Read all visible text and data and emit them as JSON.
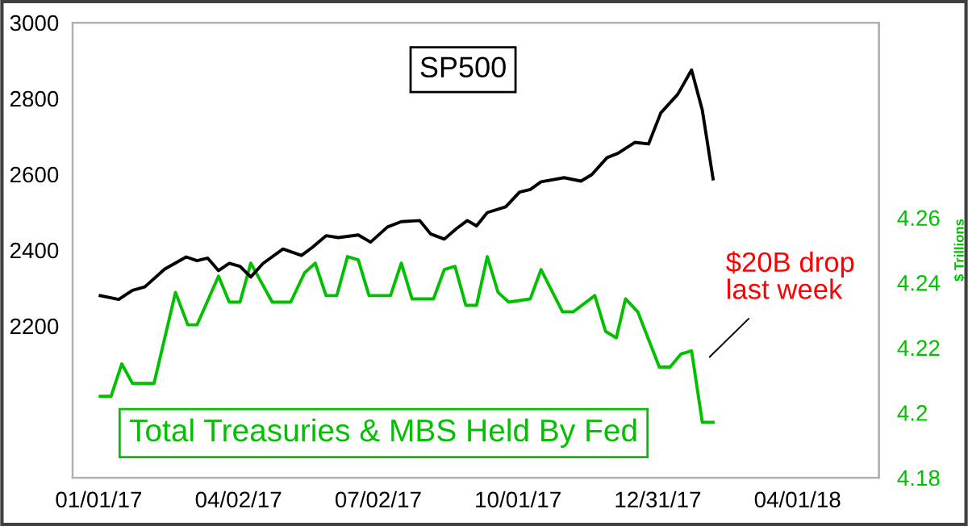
{
  "chart_data": {
    "type": "line",
    "series": [
      {
        "name": "SP500",
        "color": "#000000",
        "x": [
          "2017-01-02",
          "2017-01-14",
          "2017-01-23",
          "2017-01-31",
          "2017-02-13",
          "2017-02-27",
          "2017-03-06",
          "2017-03-13",
          "2017-03-20",
          "2017-03-27",
          "2017-04-03",
          "2017-04-10",
          "2017-04-18",
          "2017-05-01",
          "2017-05-13",
          "2017-05-20",
          "2017-05-29",
          "2017-06-06",
          "2017-06-19",
          "2017-06-27",
          "2017-07-08",
          "2017-07-17",
          "2017-07-29",
          "2017-08-05",
          "2017-08-14",
          "2017-08-22",
          "2017-08-29",
          "2017-09-04",
          "2017-09-11",
          "2017-09-23",
          "2017-10-02",
          "2017-10-09",
          "2017-10-16",
          "2017-10-31",
          "2017-11-11",
          "2017-11-18",
          "2017-11-28",
          "2017-12-05",
          "2017-12-16",
          "2017-12-25",
          "2018-01-02",
          "2018-01-13",
          "2018-01-22",
          "2018-01-29",
          "2018-02-05"
        ],
        "values": [
          2280,
          2270,
          2294,
          2303,
          2350,
          2382,
          2372,
          2379,
          2346,
          2365,
          2357,
          2329,
          2365,
          2403,
          2386,
          2407,
          2438,
          2433,
          2440,
          2421,
          2461,
          2475,
          2478,
          2443,
          2429,
          2457,
          2478,
          2464,
          2499,
          2514,
          2553,
          2560,
          2580,
          2591,
          2582,
          2599,
          2644,
          2655,
          2684,
          2680,
          2762,
          2811,
          2875,
          2769,
          2588
        ]
      },
      {
        "name": "Total Treasuries & MBS Held By Fed",
        "color": "#00c000",
        "axis": "y2",
        "x": [
          "2017-01-02",
          "2017-01-09",
          "2017-01-16",
          "2017-01-23",
          "2017-02-06",
          "2017-02-20",
          "2017-02-28",
          "2017-03-06",
          "2017-03-20",
          "2017-03-27",
          "2017-04-03",
          "2017-04-10",
          "2017-04-24",
          "2017-05-06",
          "2017-05-15",
          "2017-05-22",
          "2017-05-29",
          "2017-06-05",
          "2017-06-12",
          "2017-06-19",
          "2017-06-26",
          "2017-07-10",
          "2017-07-17",
          "2017-07-24",
          "2017-08-07",
          "2017-08-14",
          "2017-08-21",
          "2017-08-28",
          "2017-09-04",
          "2017-09-11",
          "2017-09-18",
          "2017-09-25",
          "2017-10-09",
          "2017-10-16",
          "2017-10-30",
          "2017-11-06",
          "2017-11-20",
          "2017-11-27",
          "2017-12-04",
          "2017-12-10",
          "2017-12-18",
          "2018-01-01",
          "2018-01-08",
          "2018-01-15",
          "2018-01-22",
          "2018-01-29",
          "2018-02-05"
        ],
        "values": [
          4.205,
          4.205,
          4.215,
          4.209,
          4.209,
          4.237,
          4.227,
          4.227,
          4.242,
          4.234,
          4.234,
          4.246,
          4.234,
          4.234,
          4.243,
          4.246,
          4.236,
          4.236,
          4.248,
          4.247,
          4.236,
          4.236,
          4.246,
          4.235,
          4.235,
          4.244,
          4.245,
          4.233,
          4.233,
          4.248,
          4.237,
          4.234,
          4.235,
          4.244,
          4.231,
          4.231,
          4.236,
          4.225,
          4.223,
          4.235,
          4.231,
          4.214,
          4.214,
          4.218,
          4.219,
          4.197,
          4.197
        ]
      }
    ],
    "xlim": [
      "2016-12-15",
      "2018-05-24"
    ],
    "xticks": [
      {
        "value": "2017-01-01",
        "label": "01/01/17"
      },
      {
        "value": "2017-04-02",
        "label": "04/02/17"
      },
      {
        "value": "2017-07-02",
        "label": "07/02/17"
      },
      {
        "value": "2017-10-01",
        "label": "10/01/17"
      },
      {
        "value": "2017-12-31",
        "label": "12/31/17"
      },
      {
        "value": "2018-04-01",
        "label": "04/01/18"
      }
    ],
    "ylim": [
      1800,
      3000
    ],
    "yticks": [
      2200,
      2400,
      2600,
      2800,
      3000
    ],
    "y2lim": [
      4.18,
      4.32
    ],
    "y2ticks": [
      4.18,
      4.2,
      4.22,
      4.24,
      4.26
    ],
    "y2label": "$ Trillions",
    "annotations": [
      "$20B drop\nlast week"
    ],
    "grid": false,
    "legend": false
  }
}
